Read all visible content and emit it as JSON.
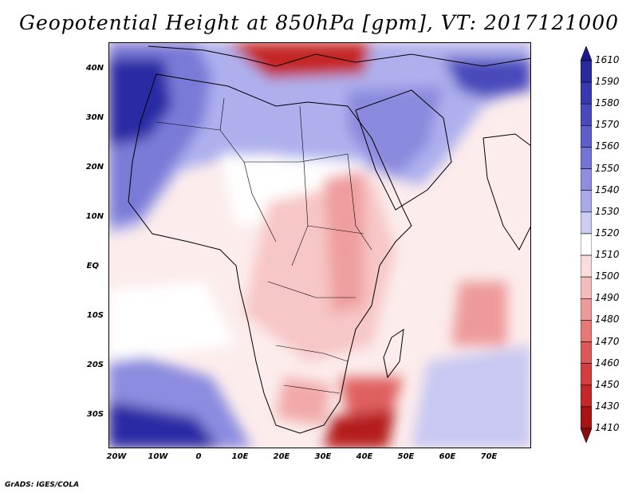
{
  "title": "Geopotential Height at 850hPa [gpm], VT: 2017121000",
  "map": {
    "variable": "Geopotential Height",
    "level": "850hPa",
    "units": "gpm",
    "valid_time": "2017121000",
    "lat_labels": [
      "40N",
      "30N",
      "20N",
      "10N",
      "EQ",
      "10S",
      "20S",
      "30S"
    ],
    "lon_labels": [
      "20W",
      "10W",
      "0",
      "10E",
      "20E",
      "30E",
      "40E",
      "50E",
      "60E",
      "70E"
    ]
  },
  "colorbar": {
    "labels": [
      "1610",
      "1590",
      "1580",
      "1570",
      "1560",
      "1550",
      "1540",
      "1530",
      "1520",
      "1510",
      "1500",
      "1490",
      "1480",
      "1470",
      "1460",
      "1450",
      "1430",
      "1410"
    ],
    "colors": [
      "#1a1a8c",
      "#2a2aa0",
      "#3838b0",
      "#4a4ac0",
      "#5e5ecc",
      "#7474d6",
      "#8e8ee0",
      "#aaaaea",
      "#ccccf4",
      "#ffffff",
      "#fadcdc",
      "#f5bcbc",
      "#ee9a9a",
      "#e67878",
      "#dd5858",
      "#d33e3e",
      "#c42828",
      "#a81414",
      "#8c0c0c"
    ]
  },
  "footer": "GrADS: IGES/COLA"
}
